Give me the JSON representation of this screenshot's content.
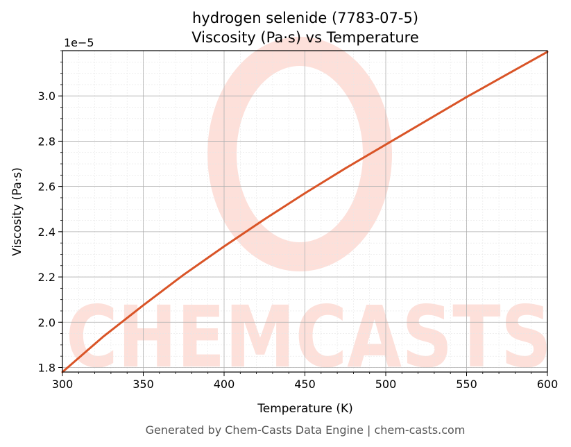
{
  "chart_data": {
    "type": "line",
    "title": "hydrogen selenide (7783-07-5)",
    "subtitle": "Viscosity (Pa·s) vs Temperature",
    "xlabel": "Temperature (K)",
    "ylabel": "Viscosity (Pa·s)",
    "y_offset_label": "1e−5",
    "y_scale_factor": 1e-05,
    "xlim": [
      300,
      600
    ],
    "ylim": [
      1.78,
      3.2
    ],
    "x_ticks": [
      300,
      350,
      400,
      450,
      500,
      550,
      600
    ],
    "y_ticks": [
      1.8,
      2.0,
      2.2,
      2.4,
      2.6,
      2.8,
      3.0
    ],
    "y_tick_labels": [
      "1.8",
      "2.0",
      "2.2",
      "2.4",
      "2.6",
      "2.8",
      "3.0"
    ],
    "grid": true,
    "series": [
      {
        "color": "#d95427",
        "x": [
          300,
          325,
          350,
          375,
          400,
          425,
          450,
          475,
          500,
          525,
          550,
          575,
          600
        ],
        "y": [
          1.78,
          1.935,
          2.075,
          2.21,
          2.335,
          2.455,
          2.57,
          2.68,
          2.785,
          2.89,
          2.995,
          3.095,
          3.195
        ]
      }
    ],
    "watermark": "CHEMCASTS",
    "footer": "Generated by Chem-Casts Data Engine | chem-casts.com"
  }
}
